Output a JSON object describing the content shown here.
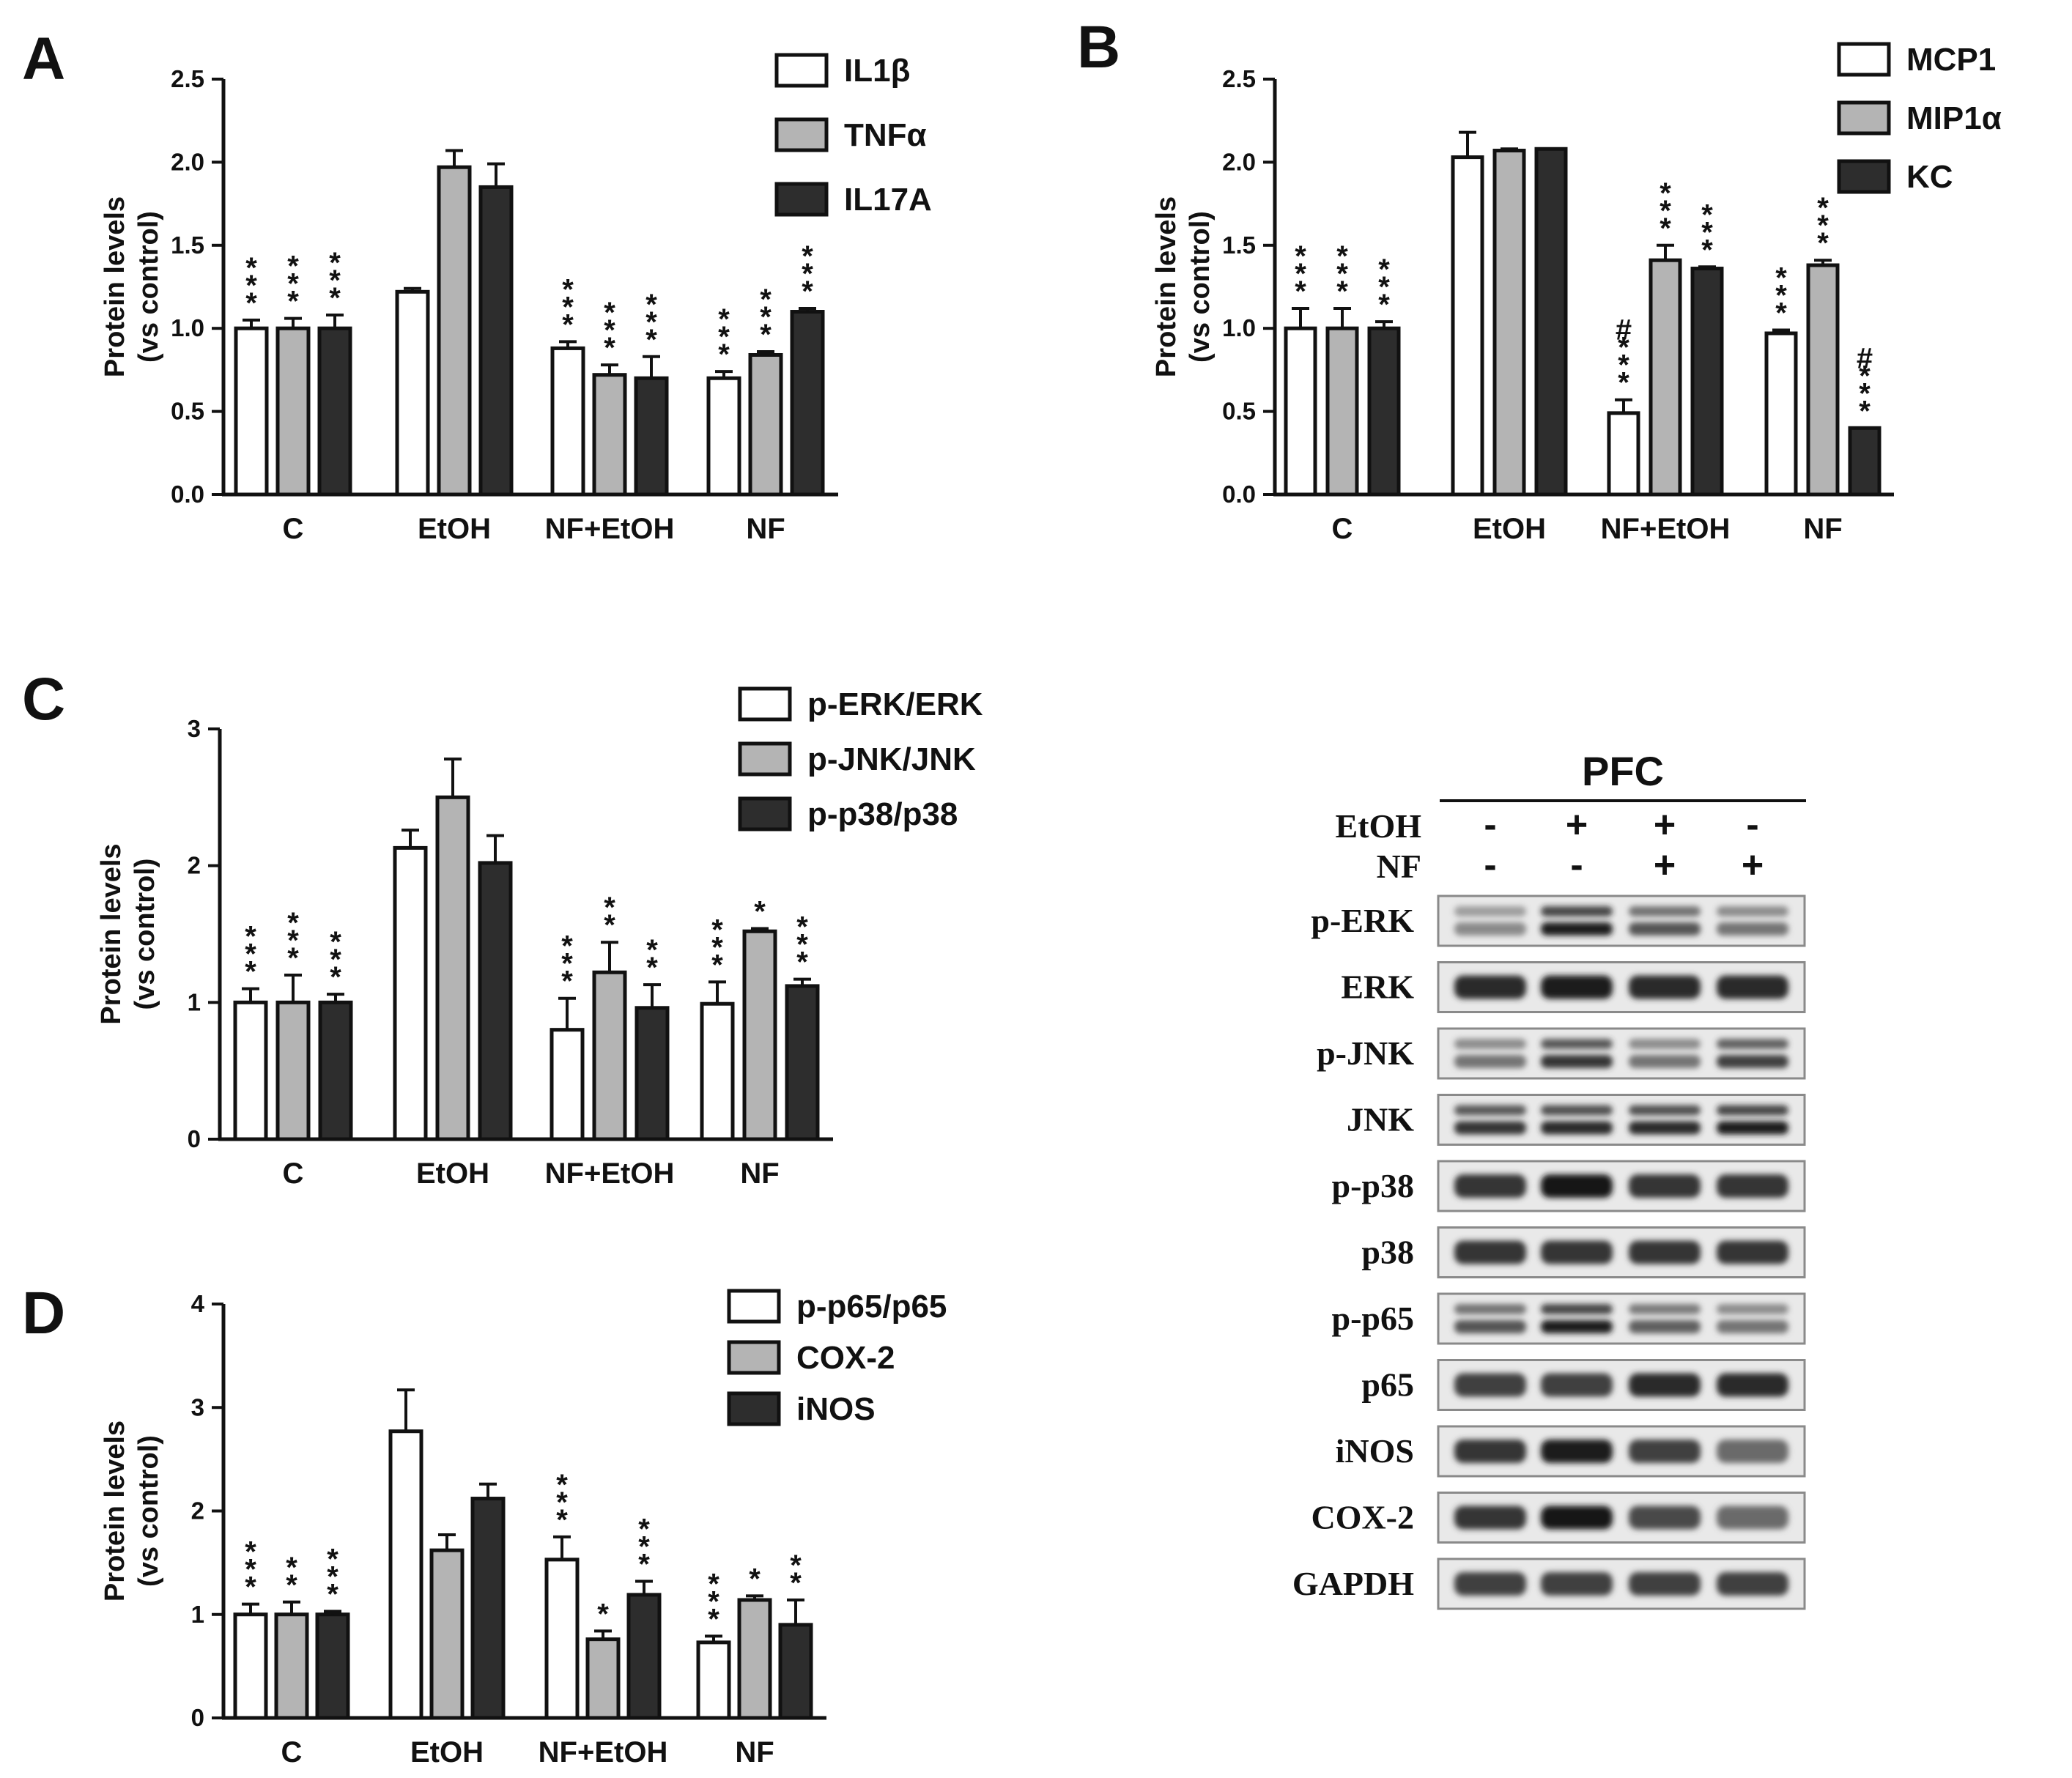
{
  "panels": {
    "A": "A",
    "B": "B",
    "C": "C",
    "D": "D"
  },
  "colors": {
    "white_bar": "#ffffff",
    "gray_bar": "#b4b4b4",
    "dark_bar": "#2d2d2d",
    "axis": "#111111"
  },
  "chart_data": [
    {
      "panel": "A",
      "type": "bar",
      "ylabel": "Protein levels (vs control)",
      "ylim": [
        0,
        2.5
      ],
      "yticks": [
        "0.0",
        "0.5",
        "1.0",
        "1.5",
        "2.0",
        "2.5"
      ],
      "categories": [
        "C",
        "EtOH",
        "NF+EtOH",
        "NF"
      ],
      "legend_position": "top-right",
      "series": [
        {
          "name": "IL1β",
          "values": [
            1.0,
            1.22,
            0.88,
            0.7
          ],
          "errors": [
            0.05,
            0.02,
            0.04,
            0.04
          ],
          "annotations": [
            "***",
            "",
            "***",
            "***"
          ]
        },
        {
          "name": "TNFα",
          "values": [
            1.0,
            1.97,
            0.72,
            0.84
          ],
          "errors": [
            0.06,
            0.1,
            0.06,
            0.02
          ],
          "annotations": [
            "***",
            "",
            "***",
            "***"
          ]
        },
        {
          "name": "IL17A",
          "values": [
            1.0,
            1.85,
            0.7,
            1.1
          ],
          "errors": [
            0.08,
            0.14,
            0.13,
            0.02
          ],
          "annotations": [
            "***",
            "",
            "***",
            "***"
          ]
        }
      ]
    },
    {
      "panel": "B",
      "type": "bar",
      "ylabel": "Protein levels (vs control)",
      "ylim": [
        0,
        2.5
      ],
      "yticks": [
        "0.0",
        "0.5",
        "1.0",
        "1.5",
        "2.0",
        "2.5"
      ],
      "categories": [
        "C",
        "EtOH",
        "NF+EtOH",
        "NF"
      ],
      "legend_position": "top-right",
      "series": [
        {
          "name": "MCP1",
          "values": [
            1.0,
            2.03,
            0.49,
            0.97
          ],
          "errors": [
            0.12,
            0.15,
            0.08,
            0.02
          ],
          "annotations": [
            "***",
            "",
            "#***",
            "***"
          ]
        },
        {
          "name": "MIP1α",
          "values": [
            1.0,
            2.07,
            1.41,
            1.38
          ],
          "errors": [
            0.12,
            0.01,
            0.09,
            0.03
          ],
          "annotations": [
            "***",
            "",
            "***",
            "***"
          ]
        },
        {
          "name": "KC",
          "values": [
            1.0,
            2.08,
            1.36,
            0.4
          ],
          "errors": [
            0.04,
            0.0,
            0.01,
            0.0
          ],
          "annotations": [
            "***",
            "",
            "***",
            "#***"
          ]
        }
      ]
    },
    {
      "panel": "C",
      "type": "bar",
      "ylabel": "Protein levels (vs control)",
      "ylim": [
        0,
        3
      ],
      "yticks": [
        "0",
        "1",
        "2",
        "3"
      ],
      "categories": [
        "C",
        "EtOH",
        "NF+EtOH",
        "NF"
      ],
      "legend_position": "top-right",
      "series": [
        {
          "name": "p-ERK/ERK",
          "values": [
            1.0,
            2.13,
            0.8,
            0.99
          ],
          "errors": [
            0.1,
            0.13,
            0.23,
            0.16
          ],
          "annotations": [
            "***",
            "",
            "***",
            "***"
          ]
        },
        {
          "name": "p-JNK/JNK",
          "values": [
            1.0,
            2.5,
            1.22,
            1.52
          ],
          "errors": [
            0.2,
            0.28,
            0.22,
            0.02
          ],
          "annotations": [
            "***",
            "",
            "**",
            "*"
          ]
        },
        {
          "name": "p-p38/p38",
          "values": [
            1.0,
            2.02,
            0.96,
            1.12
          ],
          "errors": [
            0.06,
            0.2,
            0.17,
            0.05
          ],
          "annotations": [
            "***",
            "",
            "**",
            "***"
          ]
        }
      ]
    },
    {
      "panel": "D",
      "type": "bar",
      "ylabel": "Protein levels (vs control)",
      "ylim": [
        0,
        4
      ],
      "yticks": [
        "0",
        "1",
        "2",
        "3",
        "4"
      ],
      "categories": [
        "C",
        "EtOH",
        "NF+EtOH",
        "NF"
      ],
      "legend_position": "top-right",
      "series": [
        {
          "name": "p-p65/p65",
          "values": [
            1.0,
            2.77,
            1.53,
            0.73
          ],
          "errors": [
            0.1,
            0.4,
            0.22,
            0.06
          ],
          "annotations": [
            "***",
            "",
            "***",
            "***"
          ]
        },
        {
          "name": "COX-2",
          "values": [
            1.0,
            1.62,
            0.76,
            1.14
          ],
          "errors": [
            0.12,
            0.15,
            0.08,
            0.04
          ],
          "annotations": [
            "**",
            "",
            "*",
            "*"
          ]
        },
        {
          "name": "iNOS",
          "values": [
            1.0,
            2.12,
            1.19,
            0.9
          ],
          "errors": [
            0.03,
            0.14,
            0.13,
            0.24
          ],
          "annotations": [
            "***",
            "",
            "***",
            "**"
          ]
        }
      ]
    }
  ],
  "blot": {
    "title": "PFC",
    "conditions": [
      {
        "label": "EtOH",
        "signs": [
          "-",
          "+",
          "+",
          "-"
        ]
      },
      {
        "label": "NF",
        "signs": [
          "-",
          "-",
          "+",
          "+"
        ]
      }
    ],
    "rows": [
      {
        "label": "p-ERK",
        "doublet": true,
        "intensity": [
          0.45,
          0.95,
          0.7,
          0.55
        ]
      },
      {
        "label": "ERK",
        "doublet": false,
        "intensity": [
          0.9,
          0.95,
          0.9,
          0.9
        ]
      },
      {
        "label": "p-JNK",
        "doublet": true,
        "intensity": [
          0.55,
          0.85,
          0.55,
          0.8
        ]
      },
      {
        "label": "JNK",
        "doublet": true,
        "intensity": [
          0.85,
          0.9,
          0.9,
          0.95
        ]
      },
      {
        "label": "p-p38",
        "doublet": false,
        "intensity": [
          0.85,
          1.0,
          0.85,
          0.85
        ]
      },
      {
        "label": "p38",
        "doublet": false,
        "intensity": [
          0.85,
          0.85,
          0.85,
          0.85
        ]
      },
      {
        "label": "p-p65",
        "doublet": true,
        "intensity": [
          0.7,
          0.95,
          0.65,
          0.55
        ]
      },
      {
        "label": "p65",
        "doublet": false,
        "intensity": [
          0.8,
          0.8,
          0.9,
          0.9
        ]
      },
      {
        "label": "iNOS",
        "doublet": false,
        "intensity": [
          0.85,
          0.95,
          0.8,
          0.6
        ]
      },
      {
        "label": "COX-2",
        "doublet": false,
        "intensity": [
          0.85,
          1.0,
          0.75,
          0.6
        ]
      },
      {
        "label": "GAPDH",
        "doublet": false,
        "intensity": [
          0.8,
          0.8,
          0.8,
          0.8
        ]
      }
    ]
  }
}
